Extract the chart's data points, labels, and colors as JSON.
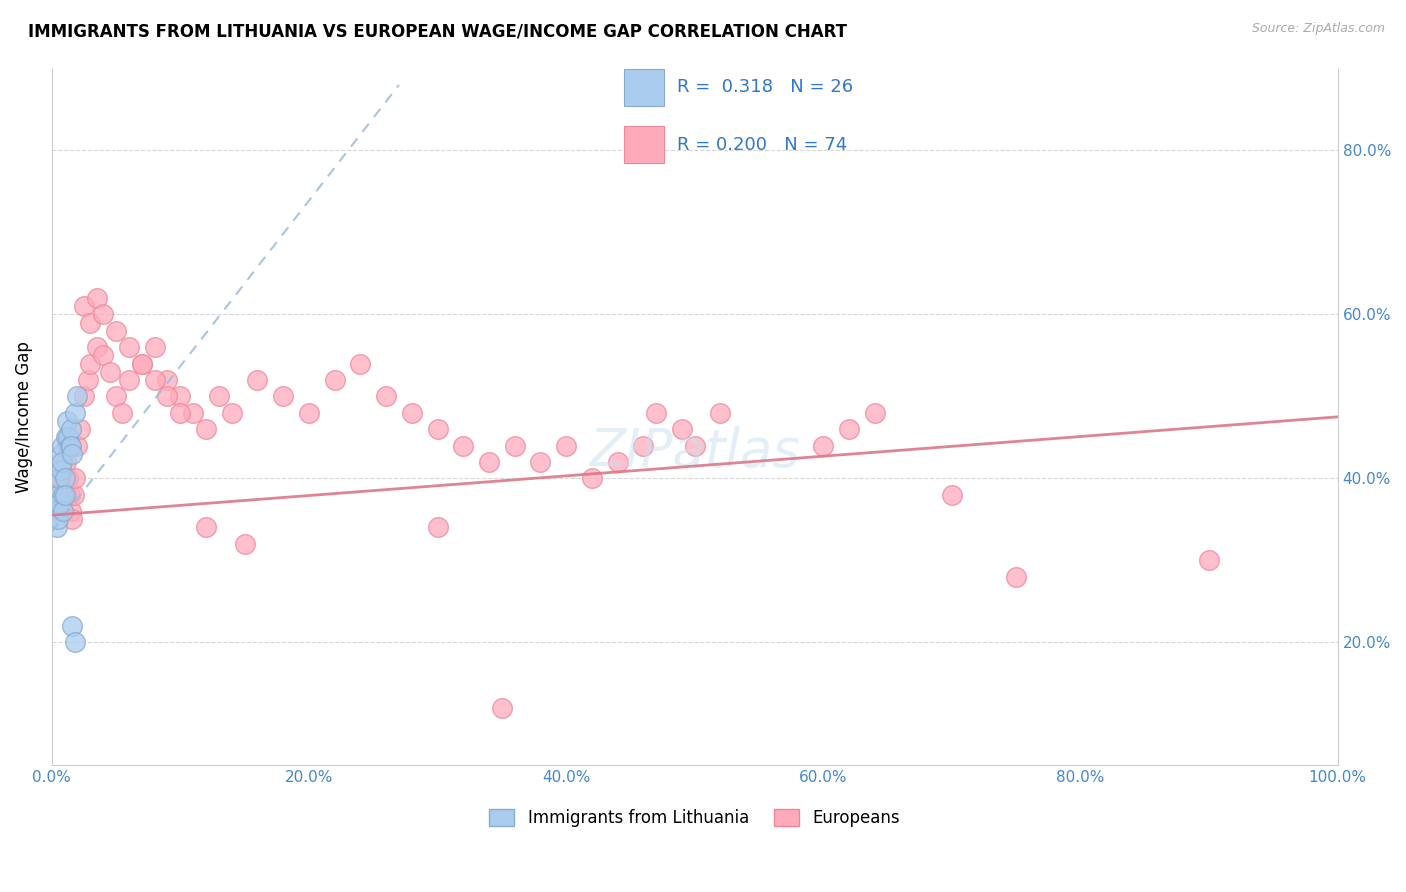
{
  "title": "IMMIGRANTS FROM LITHUANIA VS EUROPEAN WAGE/INCOME GAP CORRELATION CHART",
  "source": "Source: ZipAtlas.com",
  "ylabel": "Wage/Income Gap",
  "series1_label": "Immigrants from Lithuania",
  "series1_color_fill": "#aaccee",
  "series1_color_edge": "#88aacc",
  "series2_label": "Europeans",
  "series2_color_fill": "#ffaabb",
  "series2_color_edge": "#ee8899",
  "xmin": 0.0,
  "xmax": 1.0,
  "ymin": 0.05,
  "ymax": 0.9,
  "background_color": "#ffffff",
  "blue_trend_x": [
    0.0,
    0.27
  ],
  "blue_trend_y": [
    0.335,
    0.88
  ],
  "pink_trend_x": [
    0.0,
    1.0
  ],
  "pink_trend_y": [
    0.355,
    0.475
  ],
  "series1_x": [
    0.003,
    0.004,
    0.004,
    0.005,
    0.005,
    0.006,
    0.006,
    0.007,
    0.007,
    0.008,
    0.008,
    0.009,
    0.009,
    0.01,
    0.01,
    0.011,
    0.012,
    0.013,
    0.014,
    0.015,
    0.015,
    0.016,
    0.018,
    0.02,
    0.016,
    0.018
  ],
  "series1_y": [
    0.37,
    0.36,
    0.34,
    0.38,
    0.35,
    0.4,
    0.37,
    0.43,
    0.41,
    0.44,
    0.42,
    0.38,
    0.36,
    0.4,
    0.38,
    0.45,
    0.47,
    0.45,
    0.44,
    0.46,
    0.44,
    0.43,
    0.48,
    0.5,
    0.22,
    0.2
  ],
  "series2_x": [
    0.005,
    0.006,
    0.007,
    0.008,
    0.009,
    0.01,
    0.011,
    0.012,
    0.013,
    0.014,
    0.015,
    0.016,
    0.017,
    0.018,
    0.02,
    0.022,
    0.025,
    0.028,
    0.03,
    0.035,
    0.04,
    0.045,
    0.05,
    0.055,
    0.06,
    0.07,
    0.08,
    0.09,
    0.1,
    0.11,
    0.12,
    0.13,
    0.14,
    0.16,
    0.18,
    0.2,
    0.22,
    0.24,
    0.26,
    0.28,
    0.3,
    0.32,
    0.34,
    0.36,
    0.38,
    0.4,
    0.42,
    0.44,
    0.46,
    0.47,
    0.49,
    0.5,
    0.52,
    0.6,
    0.62,
    0.64,
    0.7,
    0.75,
    0.9,
    0.025,
    0.03,
    0.035,
    0.04,
    0.05,
    0.06,
    0.07,
    0.08,
    0.09,
    0.1,
    0.12,
    0.15,
    0.3,
    0.35
  ],
  "series2_y": [
    0.38,
    0.39,
    0.4,
    0.37,
    0.36,
    0.38,
    0.42,
    0.44,
    0.4,
    0.38,
    0.36,
    0.35,
    0.38,
    0.4,
    0.44,
    0.46,
    0.5,
    0.52,
    0.54,
    0.56,
    0.55,
    0.53,
    0.5,
    0.48,
    0.52,
    0.54,
    0.56,
    0.52,
    0.5,
    0.48,
    0.46,
    0.5,
    0.48,
    0.52,
    0.5,
    0.48,
    0.52,
    0.54,
    0.5,
    0.48,
    0.46,
    0.44,
    0.42,
    0.44,
    0.42,
    0.44,
    0.4,
    0.42,
    0.44,
    0.48,
    0.46,
    0.44,
    0.48,
    0.44,
    0.46,
    0.48,
    0.38,
    0.28,
    0.3,
    0.61,
    0.59,
    0.62,
    0.6,
    0.58,
    0.56,
    0.54,
    0.52,
    0.5,
    0.48,
    0.34,
    0.32,
    0.34,
    0.12
  ]
}
